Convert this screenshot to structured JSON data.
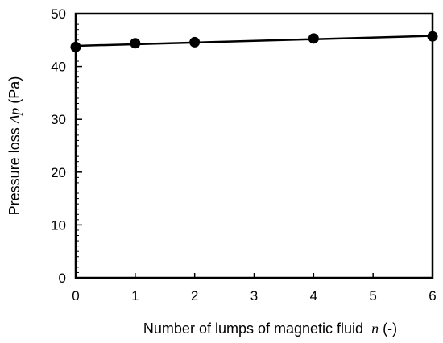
{
  "chart_data": {
    "type": "scatter",
    "title": "",
    "xlabel": "Number of lumps of magnetic fluid",
    "xlabel_symbol": "n",
    "xlabel_unit": " (-)",
    "ylabel": "Pressure loss ",
    "ylabel_symbol": "Δp",
    "ylabel_unit": " (Pa)",
    "xlim": [
      0,
      6
    ],
    "ylim": [
      0,
      50
    ],
    "x_ticks": [
      0,
      1,
      2,
      3,
      4,
      5,
      6
    ],
    "y_ticks": [
      0,
      10,
      20,
      30,
      40,
      50
    ],
    "grid": false,
    "legend": "none",
    "series": [
      {
        "x": [
          0,
          1,
          2,
          4,
          6
        ],
        "y": [
          43.7,
          44.4,
          44.6,
          45.3,
          45.7
        ]
      }
    ],
    "trendline": {
      "x": [
        0,
        6
      ],
      "y": [
        43.9,
        45.8
      ]
    },
    "colors": {
      "marker": "#000000",
      "line": "#000000",
      "axis": "#000000"
    }
  }
}
